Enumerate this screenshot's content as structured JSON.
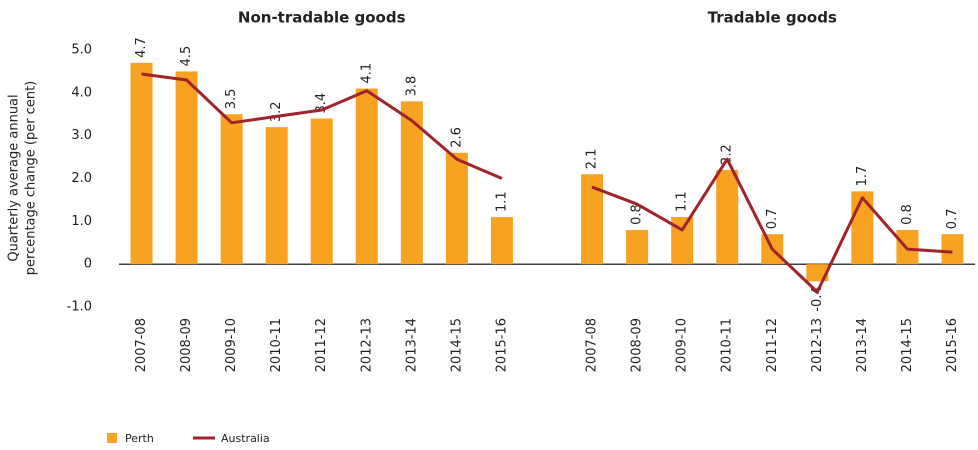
{
  "chart_data": {
    "type": "bar",
    "y_label": [
      "Quarterly average annual",
      "percentage change  (per cent)"
    ],
    "ylim": [
      -1,
      5
    ],
    "yticks": [
      {
        "value": 5,
        "label": "5.0"
      },
      {
        "value": 4,
        "label": "4.0"
      },
      {
        "value": 3,
        "label": "3.0"
      },
      {
        "value": 2,
        "label": "2.0"
      },
      {
        "value": 1,
        "label": "1.0"
      },
      0,
      {
        "value": -1,
        "label": "-1.0"
      }
    ],
    "panels": [
      {
        "title": "Non-tradable goods",
        "categories": [
          "2007-08",
          "2008-09",
          "2009-10",
          "2010-11",
          "2011-12",
          "2012-13",
          "2013-14",
          "2014-15",
          "2015-16"
        ]
      },
      {
        "title": "Tradable goods",
        "categories": [
          "2007-08",
          "2008-09",
          "2009-10",
          "2010-11",
          "2011-12",
          "2012-13",
          "2013-14",
          "2014-15",
          "2015-16"
        ]
      }
    ],
    "series": [
      {
        "name": "Perth",
        "type": "bar",
        "color": "#f7a321",
        "values": [
          [
            4.7,
            4.5,
            3.5,
            3.2,
            3.4,
            4.1,
            3.8,
            2.6,
            1.1
          ],
          [
            2.1,
            0.8,
            1.1,
            2.2,
            0.7,
            -0.4,
            1.7,
            0.8,
            0.7
          ]
        ]
      },
      {
        "name": "Australia",
        "type": "line",
        "color": "#a0232b",
        "values": [
          [
            4.44,
            4.3,
            3.3,
            3.45,
            3.6,
            4.05,
            3.35,
            2.45,
            2.0
          ],
          [
            1.8,
            1.4,
            0.8,
            2.45,
            0.35,
            -0.65,
            1.55,
            0.35,
            0.28
          ]
        ]
      }
    ]
  }
}
